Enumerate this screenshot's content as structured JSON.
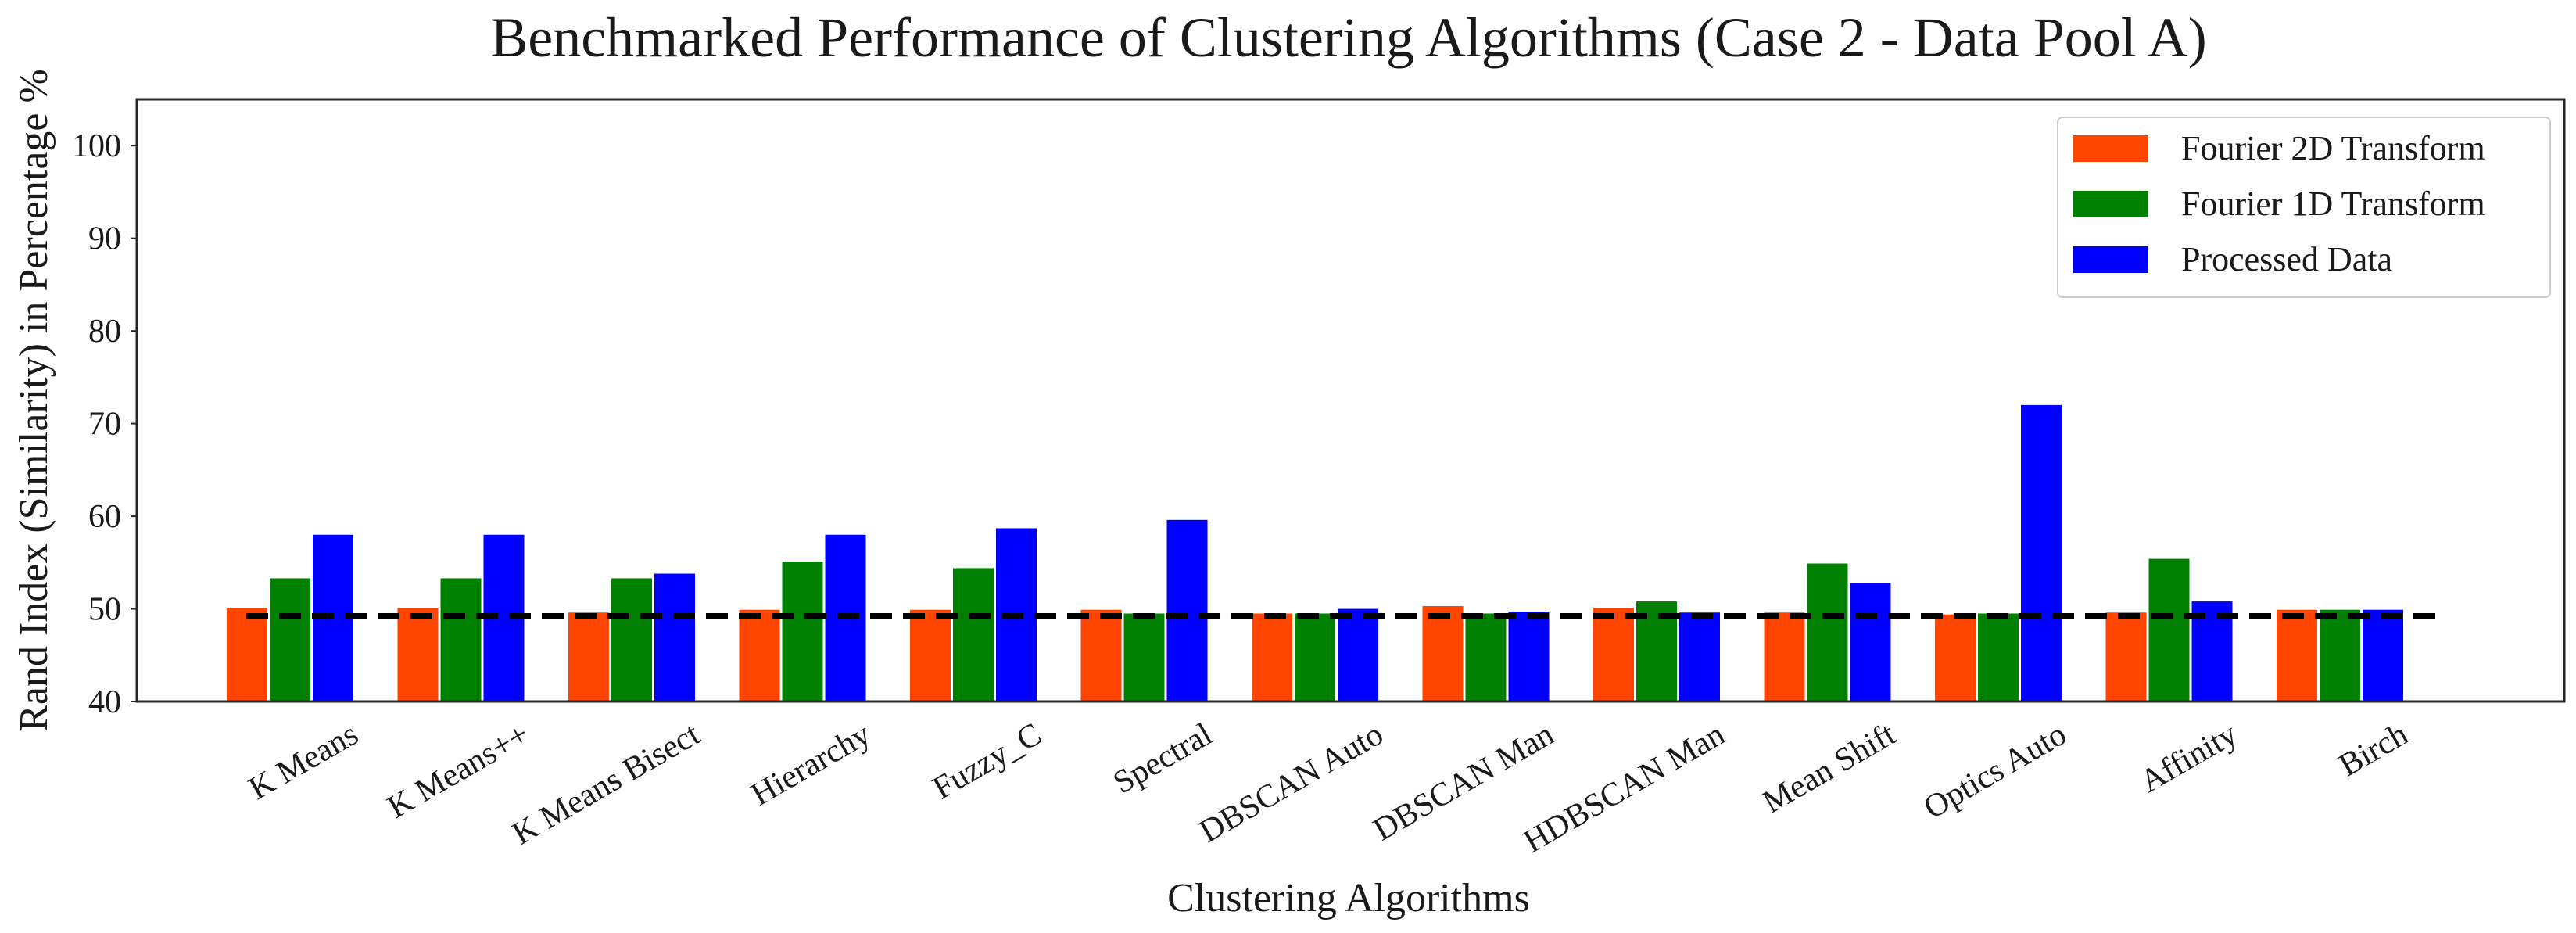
{
  "chart_data": {
    "type": "bar",
    "title": "Benchmarked Performance of Clustering Algorithms (Case 2 - Data Pool A)",
    "xlabel": "Clustering Algorithms",
    "ylabel": "Rand Index (Similarity) in Percentage %",
    "ylim": [
      40,
      105
    ],
    "yticks": [
      40,
      50,
      60,
      70,
      80,
      90,
      100
    ],
    "categories": [
      "K Means",
      "K Means++",
      "K Means Bisect",
      "Hierarchy",
      "Fuzzy_C",
      "Spectral",
      "DBSCAN Auto",
      "DBSCAN Man",
      "HDBSCAN Man",
      "Mean Shift",
      "Optics Auto",
      "Affinity",
      "Birch"
    ],
    "series": [
      {
        "name": "Fourier 2D Transform",
        "color": "#ff4500",
        "values": [
          50.1,
          50.1,
          49.6,
          49.9,
          49.9,
          49.9,
          49.5,
          50.3,
          50.1,
          49.6,
          49.4,
          49.6,
          49.9
        ]
      },
      {
        "name": "Fourier 1D Transform",
        "color": "#008000",
        "values": [
          53.3,
          53.3,
          53.3,
          55.1,
          54.4,
          49.5,
          49.5,
          49.5,
          50.8,
          54.9,
          49.5,
          55.4,
          49.9
        ]
      },
      {
        "name": "Processed Data",
        "color": "#0000ff",
        "values": [
          58.0,
          58.0,
          53.8,
          58.0,
          58.7,
          59.6,
          50.0,
          49.7,
          49.6,
          52.8,
          72.0,
          50.8,
          49.9
        ]
      }
    ],
    "reference_line": {
      "value": 49.2,
      "style": "dashed",
      "color": "#000000"
    },
    "legend": "top-right",
    "grid": false
  }
}
